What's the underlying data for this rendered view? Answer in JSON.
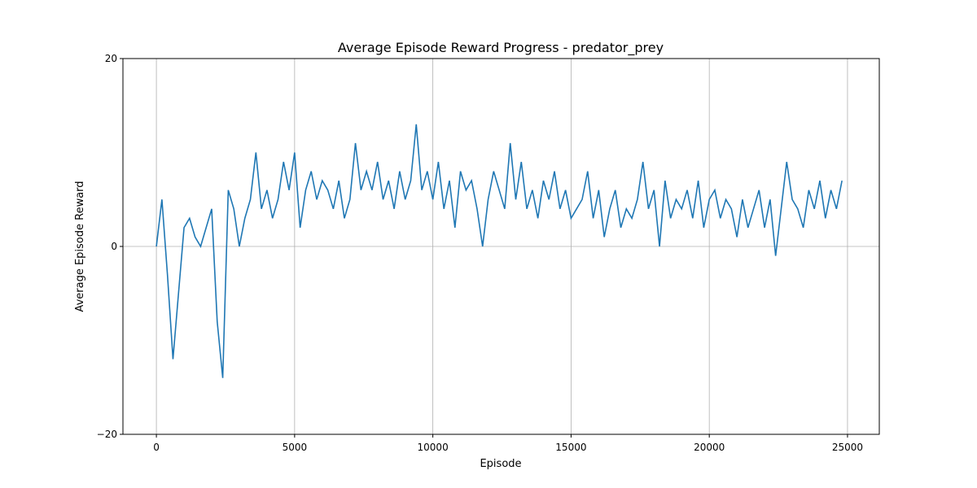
{
  "chart_data": {
    "type": "line",
    "title": "Average Episode Reward Progress - predator_prey",
    "x_label": "Episode",
    "y_label": "Average Episode Reward",
    "xlim": [
      -1210,
      26150
    ],
    "ylim": [
      -20,
      20
    ],
    "xticks": [
      0,
      5000,
      10000,
      15000,
      20000,
      25000
    ],
    "yticks": [
      {
        "value": -20,
        "label": "−20"
      },
      0,
      20
    ],
    "grid": true,
    "series": [
      {
        "color": "#1f77b4",
        "x": [
          0,
          200,
          400,
          600,
          800,
          1000,
          1200,
          1400,
          1600,
          1800,
          2000,
          2200,
          2400,
          2600,
          2800,
          3000,
          3200,
          3400,
          3600,
          3800,
          4000,
          4200,
          4400,
          4600,
          4800,
          5000,
          5200,
          5400,
          5600,
          5800,
          6000,
          6200,
          6400,
          6600,
          6800,
          7000,
          7200,
          7400,
          7600,
          7800,
          8000,
          8200,
          8400,
          8600,
          8800,
          9000,
          9200,
          9400,
          9600,
          9800,
          10000,
          10200,
          10400,
          10600,
          10800,
          11000,
          11200,
          11400,
          11600,
          11800,
          12000,
          12200,
          12400,
          12600,
          12800,
          13000,
          13200,
          13400,
          13600,
          13800,
          14000,
          14200,
          14400,
          14600,
          14800,
          15000,
          15200,
          15400,
          15600,
          15800,
          16000,
          16200,
          16400,
          16600,
          16800,
          17000,
          17200,
          17400,
          17600,
          17800,
          18000,
          18200,
          18400,
          18600,
          18800,
          19000,
          19200,
          19400,
          19600,
          19800,
          20000,
          20200,
          20400,
          20600,
          20800,
          21000,
          21200,
          21400,
          21600,
          21800,
          22000,
          22200,
          22400,
          22600,
          22800,
          23000,
          23200,
          23400,
          23600,
          23800,
          24000,
          24200,
          24400,
          24600,
          24800
        ],
        "values": [
          0,
          5,
          -3,
          -12,
          -5,
          2,
          3,
          1,
          0,
          2,
          4,
          -8,
          -14,
          6,
          4,
          0,
          3,
          5,
          10,
          4,
          6,
          3,
          5,
          9,
          6,
          10,
          2,
          6,
          8,
          5,
          7,
          6,
          4,
          7,
          3,
          5,
          11,
          6,
          8,
          6,
          9,
          5,
          7,
          4,
          8,
          5,
          7,
          13,
          6,
          8,
          5,
          9,
          4,
          7,
          2,
          8,
          6,
          7,
          4,
          0,
          5,
          8,
          6,
          4,
          11,
          5,
          9,
          4,
          6,
          3,
          7,
          5,
          8,
          4,
          6,
          3,
          4,
          5,
          8,
          3,
          6,
          1,
          4,
          6,
          2,
          4,
          3,
          5,
          9,
          4,
          6,
          0,
          7,
          3,
          5,
          4,
          6,
          3,
          7,
          2,
          5,
          6,
          3,
          5,
          4,
          1,
          5,
          2,
          4,
          6,
          2,
          5,
          -1,
          4,
          9,
          5,
          4,
          2,
          6,
          4,
          7,
          3,
          6,
          4,
          7
        ]
      }
    ]
  }
}
